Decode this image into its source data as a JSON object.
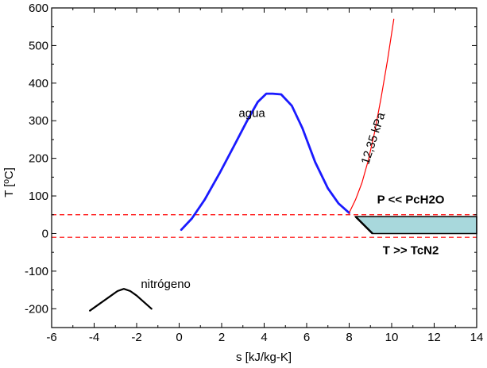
{
  "chart_data": {
    "type": "line",
    "xlabel": "s [kJ/kg-K]",
    "ylabel": "T [ºC]",
    "xlim": [
      -6,
      14
    ],
    "ylim": [
      -250,
      600
    ],
    "xticks": [
      -6,
      -4,
      -2,
      0,
      2,
      4,
      6,
      8,
      10,
      12,
      14
    ],
    "yticks": [
      -200,
      -100,
      0,
      100,
      200,
      300,
      400,
      500,
      600
    ],
    "grid": false,
    "series": [
      {
        "name": "agua",
        "color": "#1a1aff",
        "x": [
          0.1,
          0.6,
          1.2,
          1.9,
          2.6,
          3.2,
          3.7,
          4.1,
          4.4,
          4.8,
          5.3,
          5.8,
          6.4,
          7.0,
          7.5,
          8.0
        ],
        "y": [
          10,
          40,
          90,
          160,
          235,
          300,
          350,
          372,
          372,
          370,
          340,
          280,
          190,
          120,
          80,
          55
        ]
      },
      {
        "name": "nitrógeno",
        "color": "#000000",
        "x": [
          -4.2,
          -3.7,
          -3.2,
          -2.9,
          -2.6,
          -2.3,
          -2.0,
          -1.6,
          -1.3
        ],
        "y": [
          -205,
          -185,
          -165,
          -153,
          -147,
          -153,
          -165,
          -185,
          -200
        ]
      },
      {
        "name": "12,35 kPa",
        "color": "#ff0000",
        "x": [
          8.0,
          8.3,
          8.6,
          8.9,
          9.2,
          9.5,
          9.8,
          10.1
        ],
        "y": [
          55,
          90,
          135,
          195,
          270,
          360,
          460,
          570
        ]
      }
    ],
    "reference_lines": [
      {
        "y": 50,
        "style": "dashed",
        "color": "#ff0000"
      },
      {
        "y": -10,
        "style": "dashed",
        "color": "#ff0000"
      }
    ],
    "shaded_region": {
      "color": "#a8d8dc",
      "points": [
        [
          8.3,
          45
        ],
        [
          14,
          45
        ],
        [
          14,
          0
        ],
        [
          9.1,
          0
        ]
      ],
      "diagonal": [
        [
          8.3,
          45
        ],
        [
          9.1,
          0
        ]
      ]
    },
    "labels": {
      "agua": "agua",
      "nitrogeno": "nitrógeno",
      "isobar": "12,35 kPa",
      "pressure_note": "P << PcH2O",
      "temp_note": "T >> TcN2"
    },
    "label_positions": {
      "agua": {
        "x": 2.8,
        "y": 310
      },
      "nitrogeno": {
        "x": -1.8,
        "y": -145
      },
      "isobar": {
        "x": 9.3,
        "y": 250,
        "angle": -72
      },
      "pressure_note": {
        "x": 10.9,
        "y": 80
      },
      "temp_note": {
        "x": 10.9,
        "y": -55
      }
    }
  }
}
